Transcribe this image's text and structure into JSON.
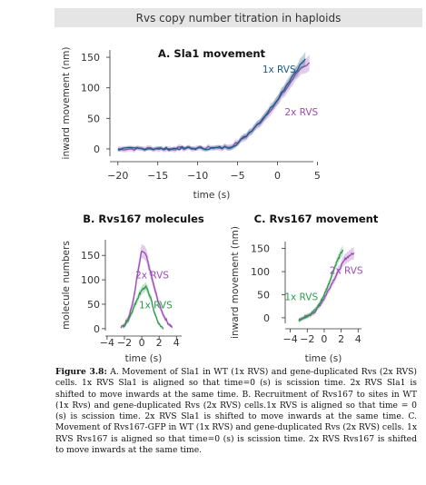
{
  "header": {
    "title": "Rvs copy number titration in haploids"
  },
  "caption": {
    "label": "Figure 3.8:",
    "text": "A. Movement of Sla1 in WT (1x RVS) and gene-duplicated Rvs (2x RVS) cells. 1x RVS Sla1 is aligned so that time=0 (s) is scission time. 2x RVS Sla1 is shifted to move inwards at the same time. B. Recruitment of Rvs167 to sites in WT (1x Rvs) and gene-duplicated Rvs (2x RVS) cells.1x RVS is aligned so that time = 0 (s) is scission time. 2x RVS Sla1 is shifted to move inwards at the same time. C. Movement of Rvs167-GFP in WT (1x RVS) and gene-duplicated Rvs (2x RVS) cells. 1x RVS Rvs167 is aligned so that time=0 (s) is scission time. 2x RVS Rvs167 is shifted to move inwards at the same time."
  },
  "colors": {
    "one_x": "#1a5d80",
    "two_x": "#9a4bb4",
    "one_x_b": "#2e9a4e"
  },
  "chart_data": [
    {
      "id": "A",
      "type": "line",
      "title": "A. Sla1 movement",
      "xlabel": "time (s)",
      "ylabel": "inward movement (nm)",
      "xlim": [
        -21,
        4.5
      ],
      "ylim": [
        -12,
        162
      ],
      "xticks": [
        -20,
        -15,
        -10,
        -5,
        0,
        5
      ],
      "xtick_labels": [
        "−20",
        "−15",
        "−10",
        "−5",
        "0",
        "5"
      ],
      "yticks": [
        0,
        50,
        100,
        150
      ],
      "ytick_labels": [
        "0",
        "50",
        "100",
        "150"
      ],
      "series": [
        {
          "name": "2x RVS",
          "color": "#9a4bb4",
          "x": [
            -20,
            -18,
            -16,
            -14,
            -12,
            -10,
            -8,
            -6,
            -5,
            -4,
            -3,
            -2,
            -1,
            0,
            1,
            2,
            3,
            4
          ],
          "y": [
            0,
            0,
            1,
            0,
            1,
            1,
            2,
            3,
            10,
            20,
            32,
            46,
            62,
            78,
            97,
            116,
            134,
            140
          ],
          "err": [
            4,
            4,
            4,
            4,
            4,
            4,
            4,
            5,
            5,
            6,
            6,
            7,
            7,
            8,
            9,
            10,
            11,
            13
          ]
        },
        {
          "name": "1x RVS",
          "color": "#1a5d80",
          "x": [
            -20,
            -18,
            -16,
            -14,
            -12,
            -10,
            -8,
            -6,
            -5,
            -4,
            -3,
            -2,
            -1,
            0,
            1,
            2,
            3,
            3.5
          ],
          "y": [
            0,
            0,
            1,
            0,
            1,
            1,
            1,
            3,
            9,
            21,
            34,
            48,
            64,
            82,
            102,
            122,
            140,
            146
          ],
          "err": [
            3,
            3,
            3,
            3,
            3,
            3,
            3,
            4,
            4,
            5,
            5,
            6,
            6,
            7,
            8,
            9,
            10,
            12
          ]
        }
      ],
      "labels": [
        {
          "text": "1x RVS",
          "series": "1x RVS",
          "x": 0.2,
          "y": 125
        },
        {
          "text": "2x RVS",
          "series": "2x RVS",
          "x": 3.0,
          "y": 55
        }
      ]
    },
    {
      "id": "B",
      "type": "line",
      "title": "B. Rvs167 molecules",
      "xlabel": "time (s)",
      "ylabel": "molecule numbers",
      "xlim": [
        -4.2,
        4.6
      ],
      "ylim": [
        -4,
        182
      ],
      "xticks": [
        -4,
        -2,
        0,
        2,
        4
      ],
      "xtick_labels": [
        "−4",
        "−2",
        "0",
        "2",
        "4"
      ],
      "yticks": [
        0,
        50,
        100,
        150
      ],
      "ytick_labels": [
        "0",
        "50",
        "100",
        "150"
      ],
      "series": [
        {
          "name": "2x RVS",
          "color": "#9a4bb4",
          "x": [
            -2.4,
            -2,
            -1.5,
            -1,
            -0.5,
            0,
            0.5,
            1,
            1.5,
            2,
            2.5,
            3,
            3.5
          ],
          "y": [
            2,
            8,
            25,
            55,
            110,
            160,
            150,
            115,
            80,
            50,
            28,
            12,
            3
          ],
          "err": [
            3,
            5,
            8,
            10,
            12,
            14,
            14,
            12,
            10,
            8,
            6,
            4,
            3
          ]
        },
        {
          "name": "1x RVS",
          "color": "#2e9a4e",
          "x": [
            -2.2,
            -2,
            -1.5,
            -1,
            -0.5,
            0,
            0.5,
            1,
            1.5,
            2,
            2.5
          ],
          "y": [
            2,
            6,
            20,
            40,
            62,
            80,
            85,
            65,
            30,
            8,
            1
          ],
          "err": [
            3,
            4,
            6,
            7,
            8,
            9,
            9,
            8,
            6,
            4,
            2
          ]
        }
      ],
      "labels": [
        {
          "text": "2x RVS",
          "series": "2x RVS",
          "x": 1.2,
          "y": 103
        },
        {
          "text": "1x RVS",
          "series": "1x RVS",
          "x": 1.6,
          "y": 42
        }
      ]
    },
    {
      "id": "C",
      "type": "line",
      "title": "C. Rvs167 movement",
      "xlabel": "time (s)",
      "ylabel": "inward movement (nm)",
      "xlim": [
        -4.6,
        4.4
      ],
      "ylim": [
        -12,
        165
      ],
      "xticks": [
        -4,
        -2,
        0,
        2,
        4
      ],
      "xtick_labels": [
        "−4",
        "−2",
        "0",
        "2",
        "4"
      ],
      "yticks": [
        0,
        50,
        100,
        150
      ],
      "ytick_labels": [
        "0",
        "50",
        "100",
        "150"
      ],
      "series": [
        {
          "name": "2x RVS",
          "color": "#9a4bb4",
          "x": [
            -3,
            -2.5,
            -2,
            -1.5,
            -1,
            -0.5,
            0,
            0.5,
            1,
            1.5,
            2,
            2.5,
            3,
            3.5
          ],
          "y": [
            -5,
            0,
            3,
            8,
            15,
            28,
            42,
            60,
            78,
            95,
            112,
            128,
            135,
            140
          ],
          "err": [
            4,
            4,
            5,
            5,
            6,
            6,
            7,
            7,
            8,
            9,
            10,
            11,
            12,
            13
          ]
        },
        {
          "name": "1x RVS",
          "color": "#2e9a4e",
          "x": [
            -3,
            -2.5,
            -2,
            -1.5,
            -1,
            -0.5,
            0,
            0.5,
            1,
            1.5,
            2,
            2.2
          ],
          "y": [
            -5,
            0,
            4,
            10,
            18,
            32,
            50,
            72,
            98,
            122,
            140,
            148
          ],
          "err": [
            4,
            4,
            4,
            5,
            5,
            6,
            6,
            7,
            8,
            9,
            10,
            11
          ]
        }
      ],
      "labels": [
        {
          "text": "2x RVS",
          "series": "2x RVS",
          "x": 2.6,
          "y": 95
        },
        {
          "text": "1x RVS",
          "series": "1x RVS",
          "x": -2.7,
          "y": 38
        }
      ]
    }
  ]
}
